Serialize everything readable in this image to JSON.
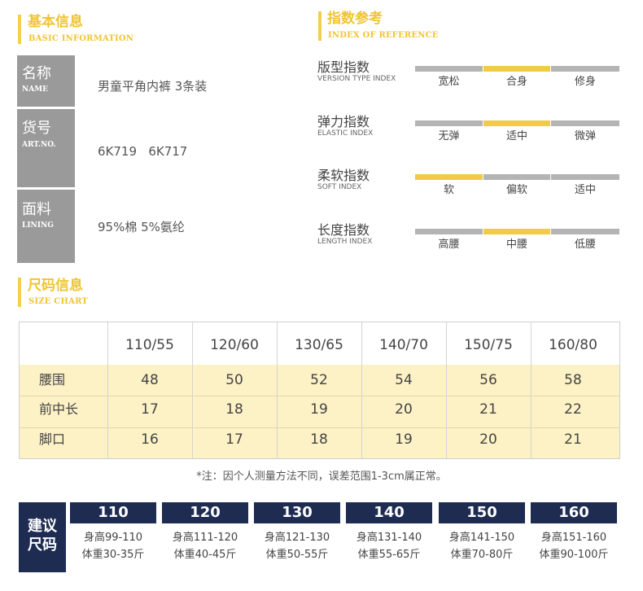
{
  "basic": {
    "title": "基本信息",
    "subtitle": "BASIC INFORMATION",
    "rows": [
      {
        "zh": "名称",
        "en": "NAME",
        "value": "男童平角内裤 3条装"
      },
      {
        "zh": "货号",
        "en": "ART.NO.",
        "value": "6K719   6K717"
      },
      {
        "zh": "面料",
        "en": "LINING",
        "value": "95%棉 5%氨纶"
      }
    ]
  },
  "index": {
    "title": "指数参考",
    "subtitle": "INDEX OF REFERENCE",
    "rows": [
      {
        "zh": "版型指数",
        "en": "VERSION TYPE INDEX",
        "options": [
          "宽松",
          "合身",
          "修身"
        ],
        "selected": 1
      },
      {
        "zh": "弹力指数",
        "en": "ELASTIC INDEX",
        "options": [
          "无弹",
          "适中",
          "微弹"
        ],
        "selected": 1
      },
      {
        "zh": "柔软指数",
        "en": "SOFT INDEX",
        "options": [
          "软",
          "偏软",
          "适中"
        ],
        "selected": 0
      },
      {
        "zh": "长度指数",
        "en": "LENGTH INDEX",
        "options": [
          "高腰",
          "中腰",
          "低腰"
        ],
        "selected": 1
      }
    ],
    "colors": {
      "active": "#efcb46",
      "inactive": "#b4b4b4"
    }
  },
  "size_chart": {
    "title": "尺码信息",
    "subtitle": "SIZE CHART",
    "headers": [
      "110/55",
      "120/60",
      "130/65",
      "140/70",
      "150/75",
      "160/80"
    ],
    "rows": [
      {
        "label": "腰围",
        "values": [
          "48",
          "50",
          "52",
          "54",
          "56",
          "58"
        ]
      },
      {
        "label": "前中长",
        "values": [
          "17",
          "18",
          "19",
          "20",
          "21",
          "22"
        ]
      },
      {
        "label": "脚口",
        "values": [
          "16",
          "17",
          "18",
          "19",
          "20",
          "21"
        ]
      }
    ],
    "note": "*注：因个人测量方法不同，误差范围1-3cm属正常。"
  },
  "suggested": {
    "label_line1": "建议",
    "label_line2": "尺码",
    "sizes": [
      {
        "size": "110",
        "height": "身高99-110",
        "weight": "体重30-35斤"
      },
      {
        "size": "120",
        "height": "身高111-120",
        "weight": "体重40-45斤"
      },
      {
        "size": "130",
        "height": "身高121-130",
        "weight": "体重50-55斤"
      },
      {
        "size": "140",
        "height": "身高131-140",
        "weight": "体重55-65斤"
      },
      {
        "size": "150",
        "height": "身高141-150",
        "weight": "体重70-80斤"
      },
      {
        "size": "160",
        "height": "身高151-160",
        "weight": "体重90-100斤"
      }
    ],
    "color": "#1f2c52"
  }
}
